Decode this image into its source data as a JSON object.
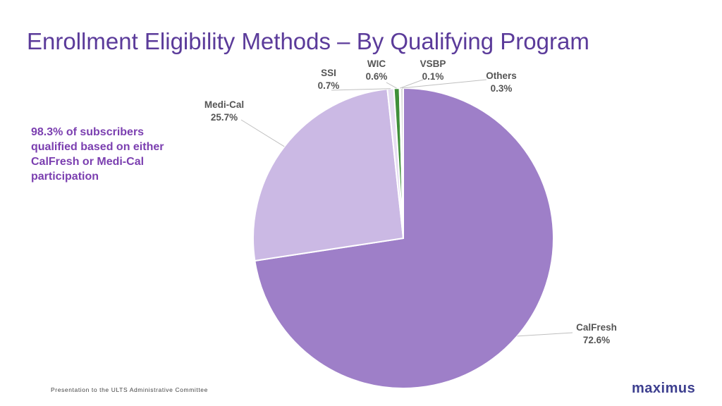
{
  "header": {
    "title": "Enrollment Eligibility Methods – By Qualifying Program"
  },
  "callout": {
    "text": "98.3% of subscribers qualified based on either CalFresh or Medi-Cal participation"
  },
  "footer": {
    "text": "Presentation to the ULTS Administrative Committee"
  },
  "logo": {
    "text": "maximus"
  },
  "colors": {
    "title": "#5b3b9a",
    "callout": "#7b3fb0",
    "logo": "#3d3f8f"
  },
  "chart_data": {
    "type": "pie",
    "title": "",
    "series": [
      {
        "values": [
          72.6,
          25.7,
          0.7,
          0.6,
          0.1,
          0.3
        ]
      }
    ],
    "categories": [
      "CalFresh",
      "Medi-Cal",
      "SSI",
      "WIC",
      "VSBP",
      "Others"
    ],
    "slices": [
      {
        "label": "CalFresh",
        "value": 72.6,
        "display": "72.6%",
        "color": "#9e7fc8"
      },
      {
        "label": "Medi-Cal",
        "value": 25.7,
        "display": "25.7%",
        "color": "#cbb9e4"
      },
      {
        "label": "SSI",
        "value": 0.7,
        "display": "0.7%",
        "color": "#e6ddf2"
      },
      {
        "label": "WIC",
        "value": 0.6,
        "display": "0.6%",
        "color": "#3f8f3a"
      },
      {
        "label": "VSBP",
        "value": 0.1,
        "display": "0.1%",
        "color": "#a8cf8c"
      },
      {
        "label": "Others",
        "value": 0.3,
        "display": "0.3%",
        "color": "#d9d9d9"
      }
    ],
    "legend": "none"
  }
}
